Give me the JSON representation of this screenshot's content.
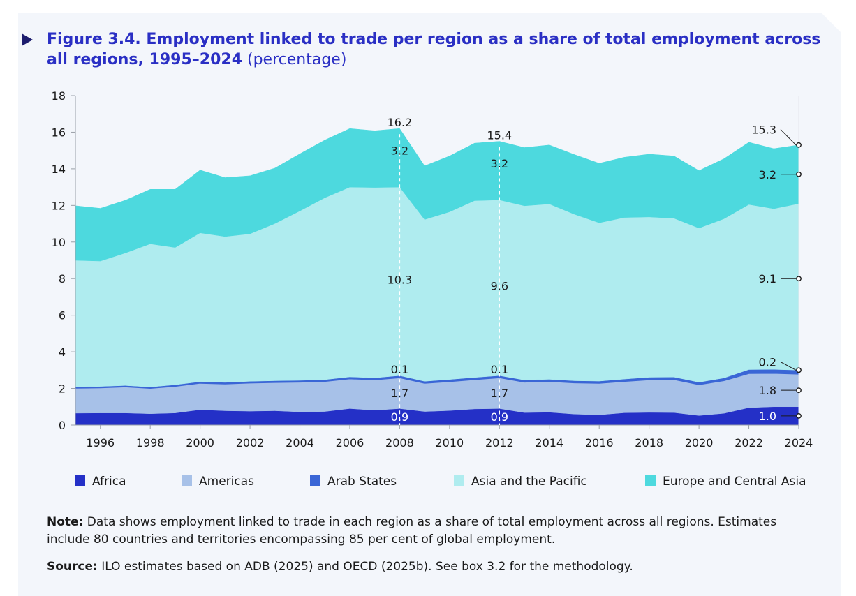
{
  "figure": {
    "title_bold": "Figure 3.4. Employment linked to trade per region as a share of total employment across all regions, 1995–2024",
    "title_unit": "(percentage)"
  },
  "note": {
    "label": "Note:",
    "text": "Data shows employment linked to trade in each region as a share of total employment across all regions. Estimates include 80 countries and territories encompassing 85 per cent of global employment."
  },
  "source": {
    "label": "Source:",
    "text": "ILO estimates based on ADB (2025) and OECD (2025b). See box 3.2 for the methodology."
  },
  "colors": {
    "africa": "#2430c7",
    "americas": "#a7c1e8",
    "arab_states": "#3a66d6",
    "asia_pacific": "#afecef",
    "europe_central_asia": "#4dd9de",
    "title": "#2a2fc4"
  },
  "chart_data": {
    "type": "area",
    "stacked": true,
    "title": "Employment linked to trade per region as a share of total employment across all regions, 1995–2024",
    "ylabel": "percentage",
    "xlabel": "",
    "x": [
      1995,
      1996,
      1997,
      1998,
      1999,
      2000,
      2001,
      2002,
      2003,
      2004,
      2005,
      2006,
      2007,
      2008,
      2009,
      2010,
      2011,
      2012,
      2013,
      2014,
      2015,
      2016,
      2017,
      2018,
      2019,
      2020,
      2021,
      2022,
      2023,
      2024
    ],
    "x_ticks": [
      1996,
      1998,
      2000,
      2002,
      2004,
      2006,
      2008,
      2010,
      2012,
      2014,
      2016,
      2018,
      2020,
      2022,
      2024
    ],
    "y_ticks": [
      0,
      2,
      4,
      6,
      8,
      10,
      12,
      14,
      16,
      18
    ],
    "ylim": [
      0,
      18
    ],
    "grid": false,
    "legend_position": "bottom",
    "series": [
      {
        "name": "Africa",
        "color": "#2430c7",
        "values": [
          0.65,
          0.66,
          0.66,
          0.62,
          0.66,
          0.84,
          0.78,
          0.76,
          0.78,
          0.72,
          0.74,
          0.9,
          0.81,
          0.9,
          0.74,
          0.79,
          0.88,
          0.9,
          0.68,
          0.7,
          0.6,
          0.56,
          0.67,
          0.69,
          0.68,
          0.52,
          0.64,
          0.95,
          1.0,
          1.0
        ]
      },
      {
        "name": "Americas",
        "color": "#a7c1e8",
        "values": [
          1.38,
          1.39,
          1.44,
          1.4,
          1.47,
          1.46,
          1.48,
          1.55,
          1.56,
          1.64,
          1.66,
          1.64,
          1.68,
          1.7,
          1.56,
          1.6,
          1.62,
          1.7,
          1.68,
          1.7,
          1.72,
          1.74,
          1.73,
          1.8,
          1.82,
          1.7,
          1.8,
          1.88,
          1.84,
          1.8
        ]
      },
      {
        "name": "Arab States",
        "color": "#3a66d6",
        "values": [
          0.06,
          0.06,
          0.06,
          0.06,
          0.07,
          0.07,
          0.07,
          0.08,
          0.08,
          0.08,
          0.08,
          0.09,
          0.09,
          0.1,
          0.09,
          0.1,
          0.1,
          0.1,
          0.1,
          0.1,
          0.1,
          0.1,
          0.11,
          0.12,
          0.12,
          0.12,
          0.13,
          0.2,
          0.2,
          0.2
        ]
      },
      {
        "name": "Asia and the Pacific",
        "color": "#afecef",
        "values": [
          6.91,
          6.85,
          7.24,
          7.82,
          7.5,
          8.13,
          7.97,
          8.06,
          8.59,
          9.26,
          9.94,
          10.37,
          10.4,
          10.3,
          8.84,
          9.16,
          9.66,
          9.6,
          9.52,
          9.58,
          9.1,
          8.65,
          8.83,
          8.76,
          8.68,
          8.42,
          8.7,
          9.02,
          8.78,
          9.1
        ]
      },
      {
        "name": "Europe and Central Asia",
        "color": "#4dd9de",
        "values": [
          2.98,
          2.88,
          2.88,
          2.98,
          3.18,
          3.43,
          3.22,
          3.17,
          3.03,
          3.12,
          3.15,
          3.2,
          3.1,
          3.2,
          2.93,
          3.05,
          3.14,
          3.2,
          3.18,
          3.22,
          3.26,
          3.25,
          3.29,
          3.43,
          3.4,
          3.14,
          3.28,
          3.4,
          3.28,
          3.2
        ]
      }
    ],
    "totals": [
      11.98,
      11.84,
      12.28,
      12.88,
      12.88,
      13.93,
      13.52,
      13.62,
      14.04,
      14.82,
      15.57,
      16.2,
      16.08,
      16.2,
      14.16,
      14.7,
      15.4,
      15.4,
      15.16,
      15.3,
      14.78,
      14.3,
      14.63,
      14.8,
      14.7,
      13.9,
      14.55,
      15.45,
      15.1,
      15.3
    ],
    "annotations": [
      {
        "year": 2008,
        "total": "16.2",
        "europe_central_asia": "3.2",
        "asia_pacific": "10.3",
        "arab_states": "0.1",
        "americas": "1.7",
        "africa": "0.9"
      },
      {
        "year": 2012,
        "total": "15.4",
        "europe_central_asia": "3.2",
        "asia_pacific": "9.6",
        "arab_states": "0.1",
        "americas": "1.7",
        "africa": "0.9"
      },
      {
        "year": 2024,
        "total": "15.3",
        "europe_central_asia": "3.2",
        "asia_pacific": "9.1",
        "arab_states": "0.2",
        "americas": "1.8",
        "africa": "1.0"
      }
    ]
  }
}
